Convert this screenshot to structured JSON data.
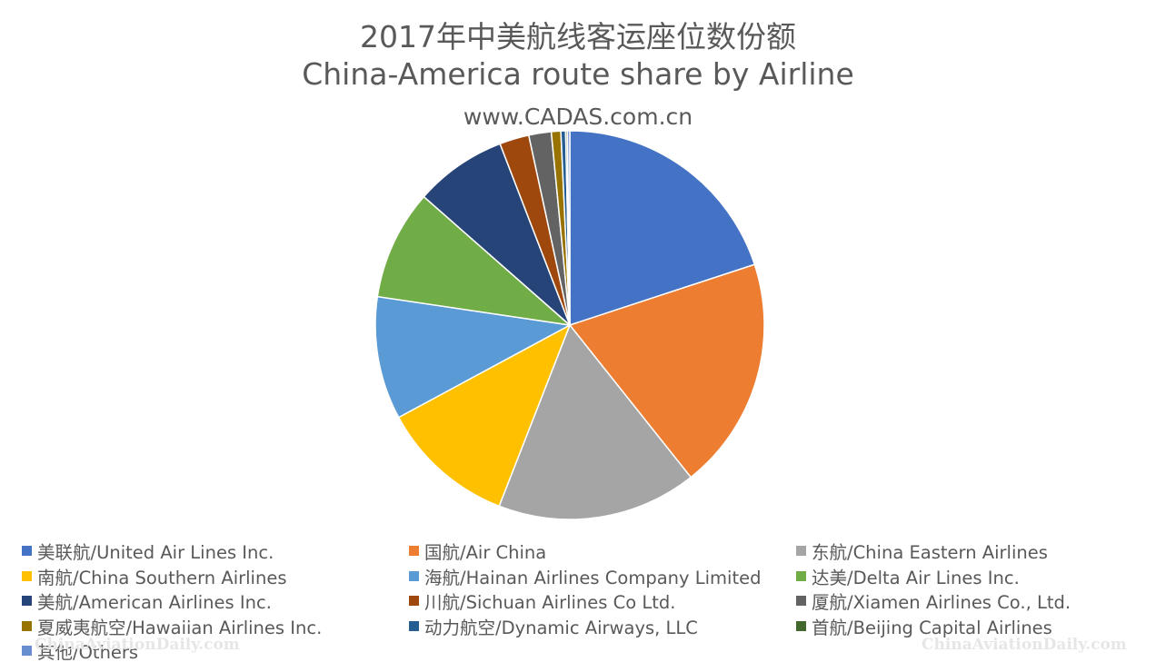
{
  "chart_data": {
    "type": "pie",
    "title": "2017年中美航线客运座位数份额",
    "subtitle": "China-America route share by Airline",
    "source": "www.CADAS.com.cn",
    "legend_position": "bottom",
    "slices": [
      {
        "label": "美联航/United Air Lines Inc.",
        "value": 20.3,
        "color": "#4472C4"
      },
      {
        "label": "国航/Air China",
        "value": 19.7,
        "color": "#ED7D31"
      },
      {
        "label": "东航/China Eastern Airlines",
        "value": 16.9,
        "color": "#A5A5A5"
      },
      {
        "label": "南航/China Southern Airlines",
        "value": 11.4,
        "color": "#FFC000"
      },
      {
        "label": "海航/Hainan Airlines Company Limited",
        "value": 10.4,
        "color": "#5B9BD5"
      },
      {
        "label": "达美/Delta Air Lines Inc.",
        "value": 9.3,
        "color": "#70AD47"
      },
      {
        "label": "美航/American Airlines Inc.",
        "value": 7.8,
        "color": "#264478"
      },
      {
        "label": "川航/Sichuan Airlines Co Ltd.",
        "value": 2.5,
        "color": "#9E480E"
      },
      {
        "label": "厦航/Xiamen Airlines Co., Ltd.",
        "value": 1.9,
        "color": "#636363"
      },
      {
        "label": "夏威夷航空/Hawaiian Airlines Inc.",
        "value": 0.8,
        "color": "#997300"
      },
      {
        "label": "动力航空/Dynamic Airways, LLC",
        "value": 0.4,
        "color": "#255E91"
      },
      {
        "label": "首航/Beijing Capital Airlines",
        "value": 0.15,
        "color": "#43682B"
      },
      {
        "label": "其他/Others",
        "value": 0.2,
        "color": "#698ED0"
      }
    ]
  },
  "watermarks": {
    "left": "ChinaAviationDaily.com",
    "right": "ChinaAviationDaily.com"
  }
}
